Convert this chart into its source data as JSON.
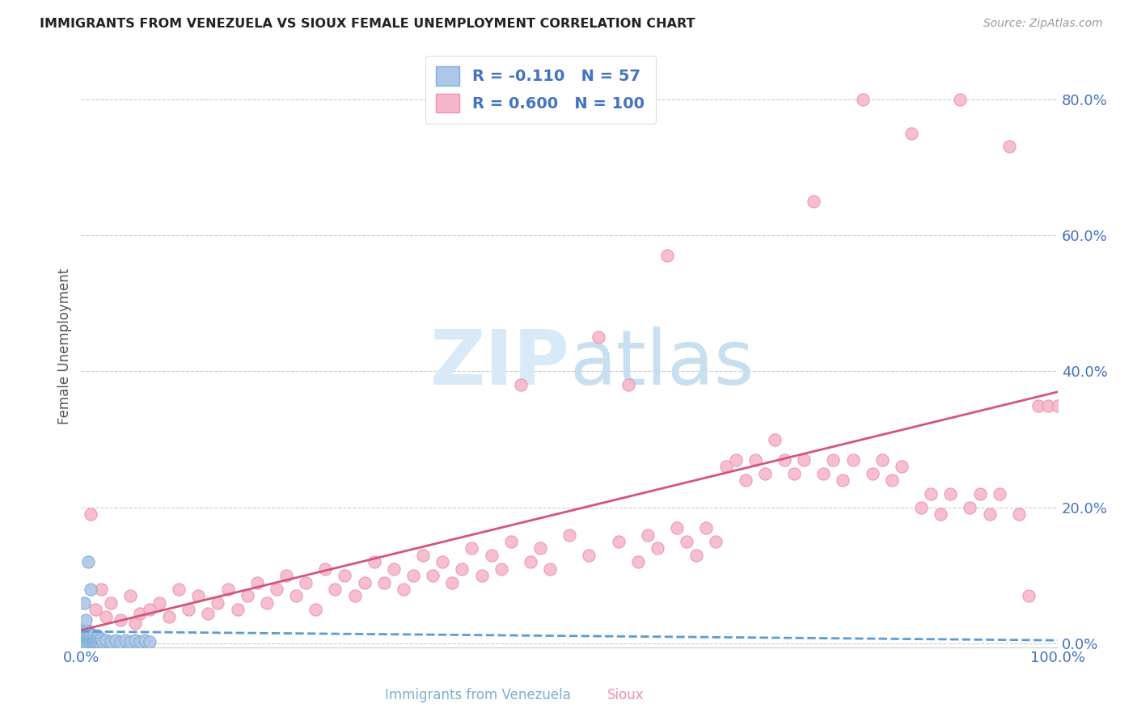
{
  "title": "IMMIGRANTS FROM VENEZUELA VS SIOUX FEMALE UNEMPLOYMENT CORRELATION CHART",
  "source": "Source: ZipAtlas.com",
  "ylabel": "Female Unemployment",
  "legend_r1": "-0.110",
  "legend_n1": "57",
  "legend_r2": "0.600",
  "legend_n2": "100",
  "color_venezuela": "#aec6e8",
  "color_venezuela_edge": "#7bafd4",
  "color_sioux": "#f5b8cb",
  "color_sioux_edge": "#f090aa",
  "color_line_venezuela": "#5b9bd5",
  "color_line_sioux": "#d4547a",
  "color_axis_labels": "#4472c4",
  "color_legend_text": "#4472c4",
  "color_title": "#222222",
  "color_source": "#999999",
  "background_color": "#ffffff",
  "watermark_color": "#d8eaf7",
  "grid_color": "#cccccc",
  "xlim": [
    0.0,
    1.0
  ],
  "ylim": [
    -0.005,
    0.88
  ],
  "ytick_values": [
    0.0,
    0.2,
    0.4,
    0.6,
    0.8
  ],
  "ytick_labels": [
    "0.0%",
    "20.0%",
    "40.0%",
    "60.0%",
    "80.0%"
  ],
  "venezuela_points": [
    [
      0.001,
      0.005
    ],
    [
      0.001,
      0.01
    ],
    [
      0.002,
      0.005
    ],
    [
      0.002,
      0.008
    ],
    [
      0.002,
      0.02
    ],
    [
      0.003,
      0.003
    ],
    [
      0.003,
      0.01
    ],
    [
      0.003,
      0.015
    ],
    [
      0.004,
      0.005
    ],
    [
      0.004,
      0.01
    ],
    [
      0.004,
      0.02
    ],
    [
      0.005,
      0.002
    ],
    [
      0.005,
      0.01
    ],
    [
      0.005,
      0.015
    ],
    [
      0.006,
      0.005
    ],
    [
      0.006,
      0.012
    ],
    [
      0.007,
      0.003
    ],
    [
      0.007,
      0.008
    ],
    [
      0.007,
      0.02
    ],
    [
      0.008,
      0.005
    ],
    [
      0.008,
      0.01
    ],
    [
      0.009,
      0.003
    ],
    [
      0.009,
      0.015
    ],
    [
      0.01,
      0.005
    ],
    [
      0.01,
      0.012
    ],
    [
      0.011,
      0.003
    ],
    [
      0.011,
      0.008
    ],
    [
      0.012,
      0.005
    ],
    [
      0.012,
      0.01
    ],
    [
      0.013,
      0.003
    ],
    [
      0.013,
      0.012
    ],
    [
      0.014,
      0.005
    ],
    [
      0.015,
      0.003
    ],
    [
      0.015,
      0.008
    ],
    [
      0.016,
      0.005
    ],
    [
      0.016,
      0.012
    ],
    [
      0.017,
      0.003
    ],
    [
      0.017,
      0.01
    ],
    [
      0.018,
      0.005
    ],
    [
      0.019,
      0.003
    ],
    [
      0.02,
      0.005
    ],
    [
      0.02,
      0.008
    ],
    [
      0.022,
      0.003
    ],
    [
      0.025,
      0.005
    ],
    [
      0.03,
      0.003
    ],
    [
      0.035,
      0.005
    ],
    [
      0.04,
      0.003
    ],
    [
      0.045,
      0.005
    ],
    [
      0.05,
      0.003
    ],
    [
      0.055,
      0.005
    ],
    [
      0.06,
      0.003
    ],
    [
      0.065,
      0.005
    ],
    [
      0.07,
      0.003
    ],
    [
      0.003,
      0.06
    ],
    [
      0.005,
      0.035
    ],
    [
      0.007,
      0.12
    ],
    [
      0.01,
      0.08
    ]
  ],
  "sioux_points": [
    [
      0.01,
      0.19
    ],
    [
      0.015,
      0.05
    ],
    [
      0.02,
      0.08
    ],
    [
      0.025,
      0.04
    ],
    [
      0.03,
      0.06
    ],
    [
      0.04,
      0.035
    ],
    [
      0.05,
      0.07
    ],
    [
      0.055,
      0.03
    ],
    [
      0.06,
      0.045
    ],
    [
      0.07,
      0.05
    ],
    [
      0.08,
      0.06
    ],
    [
      0.09,
      0.04
    ],
    [
      0.1,
      0.08
    ],
    [
      0.11,
      0.05
    ],
    [
      0.12,
      0.07
    ],
    [
      0.13,
      0.045
    ],
    [
      0.14,
      0.06
    ],
    [
      0.15,
      0.08
    ],
    [
      0.16,
      0.05
    ],
    [
      0.17,
      0.07
    ],
    [
      0.18,
      0.09
    ],
    [
      0.19,
      0.06
    ],
    [
      0.2,
      0.08
    ],
    [
      0.21,
      0.1
    ],
    [
      0.22,
      0.07
    ],
    [
      0.23,
      0.09
    ],
    [
      0.24,
      0.05
    ],
    [
      0.25,
      0.11
    ],
    [
      0.26,
      0.08
    ],
    [
      0.27,
      0.1
    ],
    [
      0.28,
      0.07
    ],
    [
      0.29,
      0.09
    ],
    [
      0.3,
      0.12
    ],
    [
      0.31,
      0.09
    ],
    [
      0.32,
      0.11
    ],
    [
      0.33,
      0.08
    ],
    [
      0.34,
      0.1
    ],
    [
      0.35,
      0.13
    ],
    [
      0.36,
      0.1
    ],
    [
      0.37,
      0.12
    ],
    [
      0.38,
      0.09
    ],
    [
      0.39,
      0.11
    ],
    [
      0.4,
      0.14
    ],
    [
      0.41,
      0.1
    ],
    [
      0.42,
      0.13
    ],
    [
      0.43,
      0.11
    ],
    [
      0.44,
      0.15
    ],
    [
      0.45,
      0.38
    ],
    [
      0.46,
      0.12
    ],
    [
      0.47,
      0.14
    ],
    [
      0.48,
      0.11
    ],
    [
      0.5,
      0.16
    ],
    [
      0.52,
      0.13
    ],
    [
      0.53,
      0.45
    ],
    [
      0.55,
      0.15
    ],
    [
      0.56,
      0.38
    ],
    [
      0.57,
      0.12
    ],
    [
      0.58,
      0.16
    ],
    [
      0.59,
      0.14
    ],
    [
      0.6,
      0.57
    ],
    [
      0.61,
      0.17
    ],
    [
      0.62,
      0.15
    ],
    [
      0.63,
      0.13
    ],
    [
      0.64,
      0.17
    ],
    [
      0.65,
      0.15
    ],
    [
      0.66,
      0.26
    ],
    [
      0.67,
      0.27
    ],
    [
      0.68,
      0.24
    ],
    [
      0.69,
      0.27
    ],
    [
      0.7,
      0.25
    ],
    [
      0.71,
      0.3
    ],
    [
      0.72,
      0.27
    ],
    [
      0.73,
      0.25
    ],
    [
      0.74,
      0.27
    ],
    [
      0.75,
      0.65
    ],
    [
      0.76,
      0.25
    ],
    [
      0.77,
      0.27
    ],
    [
      0.78,
      0.24
    ],
    [
      0.79,
      0.27
    ],
    [
      0.8,
      0.8
    ],
    [
      0.81,
      0.25
    ],
    [
      0.82,
      0.27
    ],
    [
      0.83,
      0.24
    ],
    [
      0.84,
      0.26
    ],
    [
      0.85,
      0.75
    ],
    [
      0.86,
      0.2
    ],
    [
      0.87,
      0.22
    ],
    [
      0.88,
      0.19
    ],
    [
      0.89,
      0.22
    ],
    [
      0.9,
      0.8
    ],
    [
      0.91,
      0.2
    ],
    [
      0.92,
      0.22
    ],
    [
      0.93,
      0.19
    ],
    [
      0.94,
      0.22
    ],
    [
      0.95,
      0.73
    ],
    [
      0.96,
      0.19
    ],
    [
      0.97,
      0.07
    ],
    [
      0.98,
      0.35
    ],
    [
      0.99,
      0.35
    ],
    [
      1.0,
      0.35
    ]
  ],
  "sioux_line_x": [
    0.0,
    1.0
  ],
  "sioux_line_y": [
    0.02,
    0.37
  ],
  "ven_line_x": [
    0.0,
    1.0
  ],
  "ven_line_y": [
    0.018,
    0.005
  ]
}
